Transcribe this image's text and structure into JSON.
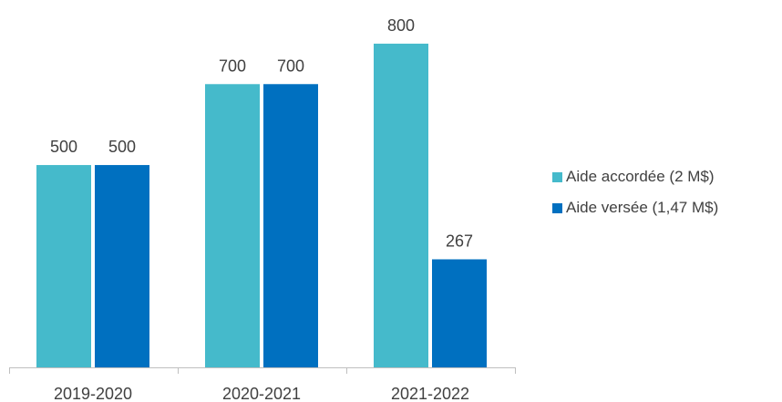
{
  "chart_data": {
    "type": "bar",
    "categories": [
      "2019-2020",
      "2020-2021",
      "2021-2022"
    ],
    "series": [
      {
        "name": "Aide accordée (2 M$)",
        "values": [
          500,
          700,
          800
        ],
        "color": "#45BACB"
      },
      {
        "name": "Aide versée (1,47 M$)",
        "values": [
          500,
          700,
          267
        ],
        "color": "#0070C0"
      }
    ],
    "data_labels": [
      [
        "500",
        "700",
        "800"
      ],
      [
        "500",
        "700",
        "267"
      ]
    ],
    "ylim": [
      0,
      900
    ],
    "grid": false,
    "legend_position": "right"
  }
}
